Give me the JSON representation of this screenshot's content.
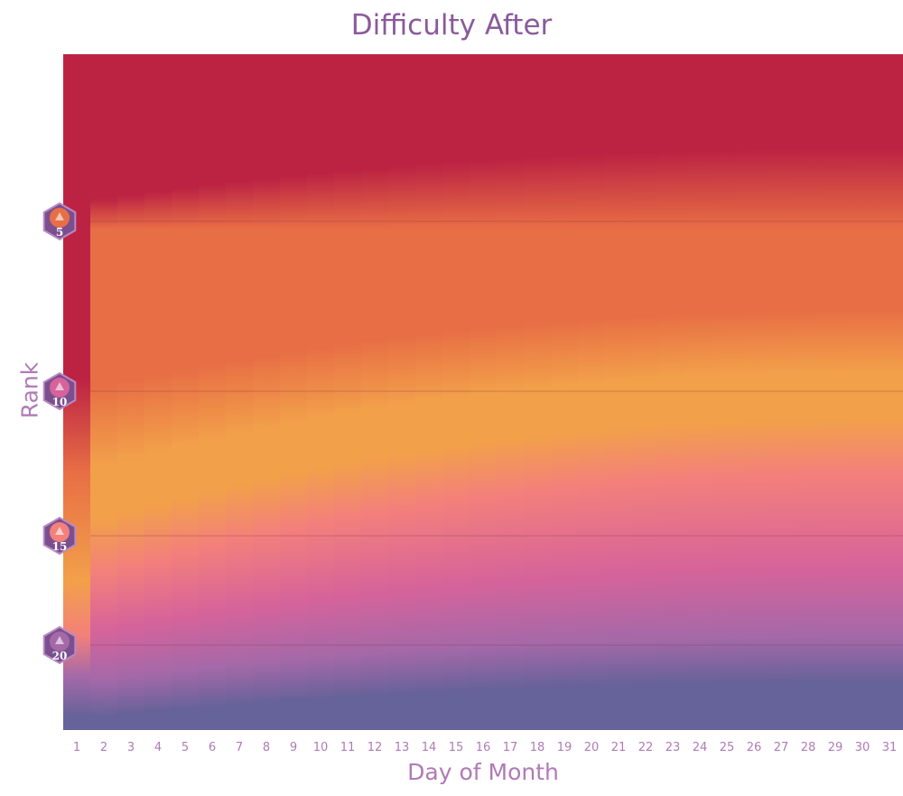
{
  "chart_data": {
    "type": "heatmap",
    "title": "Difficulty After",
    "xlabel": "Day of Month",
    "ylabel": "Rank",
    "x_ticks": [
      "1",
      "2",
      "3",
      "4",
      "5",
      "6",
      "7",
      "8",
      "9",
      "10",
      "11",
      "12",
      "13",
      "14",
      "15",
      "16",
      "17",
      "18",
      "19",
      "20",
      "21",
      "22",
      "23",
      "24",
      "25",
      "26",
      "27",
      "28",
      "29",
      "30",
      "31"
    ],
    "y_ranks": [
      5,
      10,
      15,
      20
    ],
    "colors": {
      "very_hard": "#bc2343",
      "hard": "#e86f45",
      "medium": "#f2a04a",
      "easy": "#f3807b",
      "easier": "#d6639a",
      "easiest": "#a569a8",
      "low": "#66629a"
    }
  }
}
